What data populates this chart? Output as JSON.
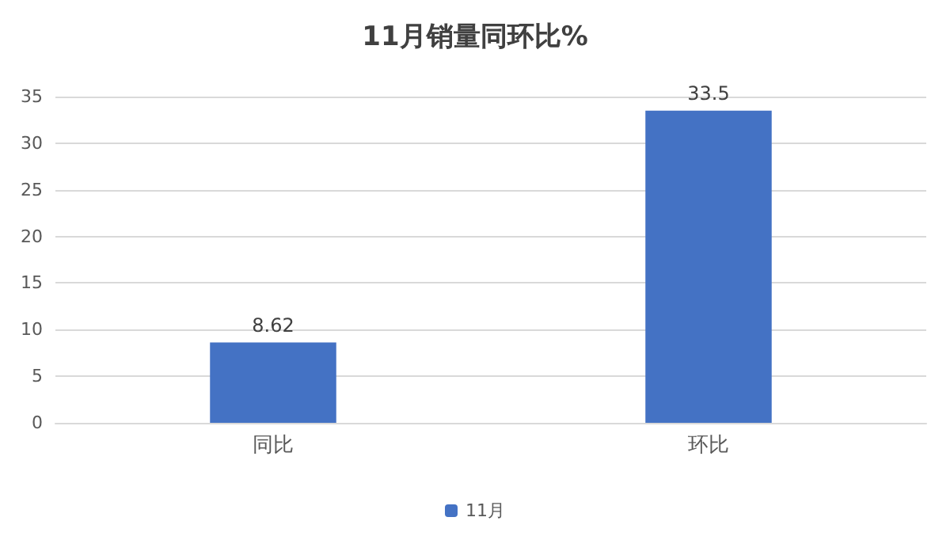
{
  "chart_data": {
    "type": "bar",
    "title": "11月销量同环比%",
    "categories": [
      "同比",
      "环比"
    ],
    "series": [
      {
        "name": "11月",
        "color": "#4472c4",
        "values": [
          8.62,
          33.5
        ]
      }
    ],
    "ylim": [
      0,
      35
    ],
    "yticks": [
      0,
      5,
      10,
      15,
      20,
      25,
      30,
      35
    ],
    "grid": "y",
    "legend": "bottom",
    "data_labels": true
  }
}
